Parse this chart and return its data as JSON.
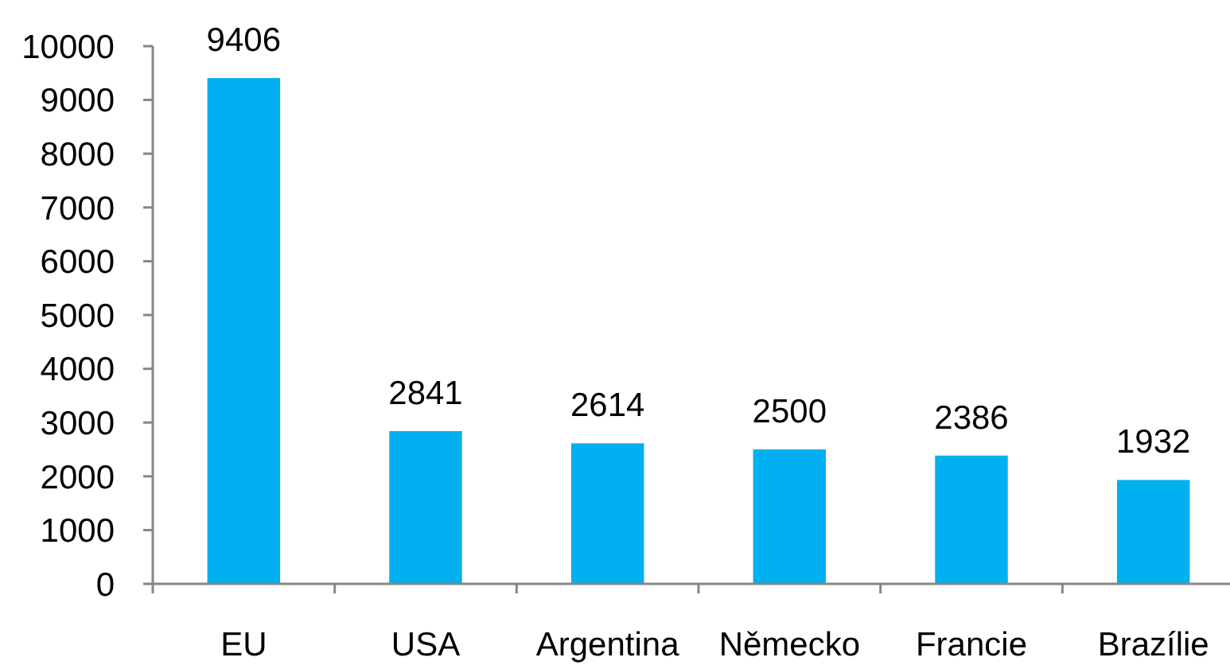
{
  "chart_data": {
    "type": "bar",
    "categories": [
      "EU",
      "USA",
      "Argentina",
      "Německo",
      "Francie",
      "Brazílie"
    ],
    "values": [
      9406,
      2841,
      2614,
      2500,
      2386,
      1932
    ],
    "color": "#00b0f0",
    "ylim": [
      0,
      10000
    ],
    "yticks": [
      0,
      1000,
      2000,
      3000,
      4000,
      5000,
      6000,
      7000,
      8000,
      9000,
      10000
    ],
    "data_labels": true
  }
}
